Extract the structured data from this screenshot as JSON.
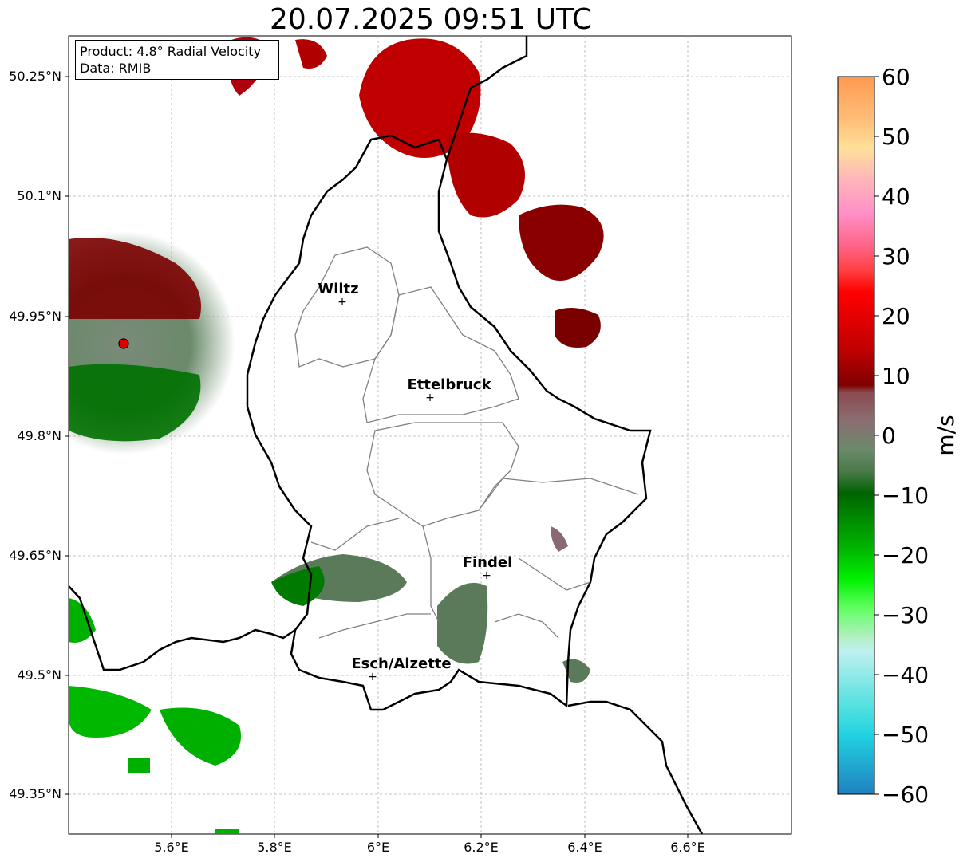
{
  "title": "20.07.2025 09:51 UTC",
  "info": {
    "product": "Product: 4.8° Radial Velocity",
    "data": "Data: RMIB"
  },
  "axes": {
    "lat_ticks": [
      "50.25°N",
      "50.1°N",
      "49.95°N",
      "49.8°N",
      "49.65°N",
      "49.5°N",
      "49.35°N"
    ],
    "lon_ticks": [
      "5.6°E",
      "5.8°E",
      "6°E",
      "6.2°E",
      "6.4°E",
      "6.6°E"
    ],
    "lon_range": [
      5.4,
      6.8
    ],
    "lat_range": [
      49.3,
      50.3
    ],
    "grid": true
  },
  "cities": [
    {
      "name": "Wiltz",
      "lon": 5.93,
      "lat": 49.967
    },
    {
      "name": "Ettelbruck",
      "lon": 6.1,
      "lat": 49.847
    },
    {
      "name": "Findel",
      "lon": 6.21,
      "lat": 49.627
    },
    {
      "name": "Esch/Alzette",
      "lon": 5.99,
      "lat": 49.5
    }
  ],
  "radar_site": {
    "lon": 5.505,
    "lat": 49.915,
    "color": "#e00000"
  },
  "colorbar": {
    "label": "m/s",
    "min": -60,
    "max": 60,
    "ticks": [
      "60",
      "50",
      "40",
      "30",
      "20",
      "10",
      "0",
      "−10",
      "−20",
      "−30",
      "−40",
      "−50",
      "−60"
    ]
  },
  "colors": {
    "receding_dark": "#8b0000",
    "receding": "#c00000",
    "near_zero_green": "#5a7a5a",
    "approaching": "#00b000",
    "border": "#000000",
    "canton_border": "#808080"
  }
}
